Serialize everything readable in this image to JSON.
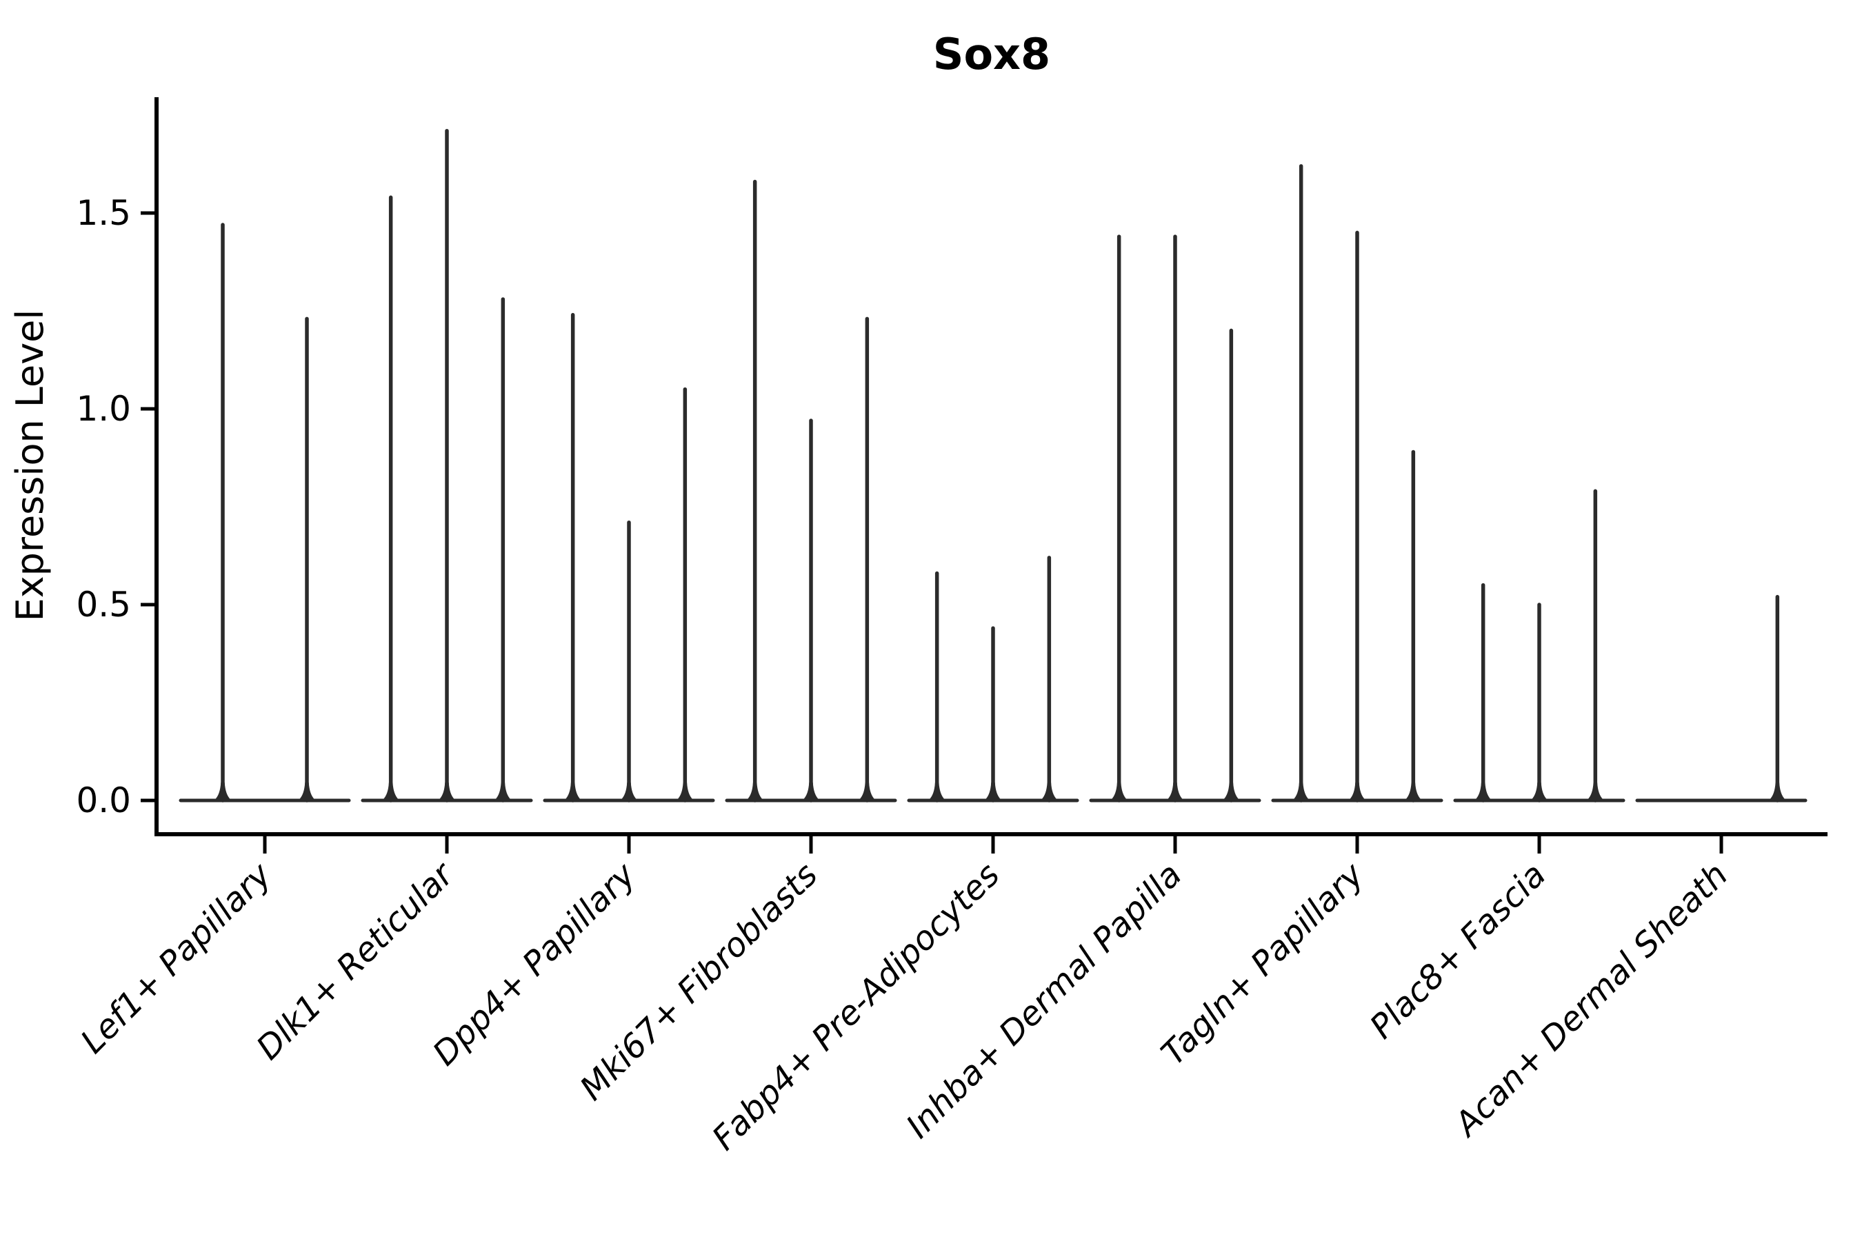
{
  "chart_data": {
    "type": "violin",
    "title": "Sox8",
    "ylabel": "Expression Level",
    "xlabel": "",
    "grid": false,
    "legend": false,
    "yticks": [
      {
        "value": 0.0,
        "label": "0.0"
      },
      {
        "value": 0.5,
        "label": "0.5"
      },
      {
        "value": 1.0,
        "label": "1.0"
      },
      {
        "value": 1.5,
        "label": "1.5"
      }
    ],
    "ylim": [
      -0.09,
      1.8
    ],
    "categories": [
      "Lef1+ Papillary",
      "Dlk1+ Reticular",
      "Dpp4+ Papillary",
      "Mki67+ Fibroblasts",
      "Fabp4+ Pre-Adipocytes",
      "Inhba+ Dermal Papilla",
      "Tagln+ Papillary",
      "Plac8+ Fascia",
      "Acan+ Dermal Sheath"
    ],
    "groups": [
      {
        "category": "Lef1+ Papillary",
        "violin_peaks": [
          1.47,
          1.23
        ]
      },
      {
        "category": "Dlk1+ Reticular",
        "violin_peaks": [
          1.54,
          1.71,
          1.28
        ]
      },
      {
        "category": "Dpp4+ Papillary",
        "violin_peaks": [
          1.24,
          0.71,
          1.05
        ]
      },
      {
        "category": "Mki67+ Fibroblasts",
        "violin_peaks": [
          1.58,
          0.97,
          1.23
        ]
      },
      {
        "category": "Fabp4+ Pre-Adipocytes",
        "violin_peaks": [
          0.58,
          0.44,
          0.62
        ]
      },
      {
        "category": "Inhba+ Dermal Papilla",
        "violin_peaks": [
          1.44,
          1.44,
          1.2
        ]
      },
      {
        "category": "Tagln+ Papillary",
        "violin_peaks": [
          1.62,
          1.45,
          0.89
        ]
      },
      {
        "category": "Plac8+ Fascia",
        "violin_peaks": [
          0.55,
          0.5,
          0.79
        ]
      },
      {
        "category": "Acan+ Dermal Sheath",
        "violin_peaks": [
          0,
          0,
          0.52
        ]
      }
    ],
    "colors": {
      "violin": "#2b2b2b",
      "axis": "#000000",
      "text": "#000000",
      "background": "#ffffff"
    }
  }
}
